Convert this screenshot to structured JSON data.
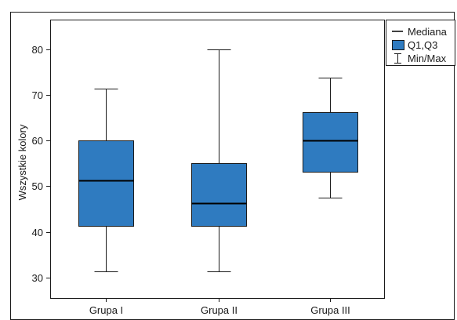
{
  "chart_data": {
    "type": "boxplot",
    "title": "",
    "xlabel": "",
    "ylabel": "Wszystkie kolory",
    "ylim": [
      25.5,
      86.5
    ],
    "yticks": [
      30,
      40,
      50,
      60,
      70,
      80
    ],
    "categories": [
      "Grupa I",
      "Grupa II",
      "Grupa III"
    ],
    "boxes": [
      {
        "category": "Grupa I",
        "min": 31.3,
        "q1": 41.3,
        "median": 51.3,
        "q3": 60.0,
        "max": 71.3
      },
      {
        "category": "Grupa II",
        "min": 31.3,
        "q1": 41.3,
        "median": 46.3,
        "q3": 55.0,
        "max": 80.0
      },
      {
        "category": "Grupa III",
        "min": 47.5,
        "q1": 53.2,
        "median": 60.0,
        "q3": 66.3,
        "max": 73.8
      }
    ],
    "legend": {
      "position": "top-right",
      "entries": [
        {
          "key": "median",
          "label": "Mediana"
        },
        {
          "key": "box",
          "label": "Q1,Q3"
        },
        {
          "key": "whisker",
          "label": "Min/Max"
        }
      ]
    },
    "grid": false,
    "colors": {
      "box_fill": "#2f7bc0",
      "box_stroke": "#1a1a1a",
      "median": "#000000",
      "whisker": "#1a1a1a",
      "axis": "#1a1a1a"
    }
  }
}
